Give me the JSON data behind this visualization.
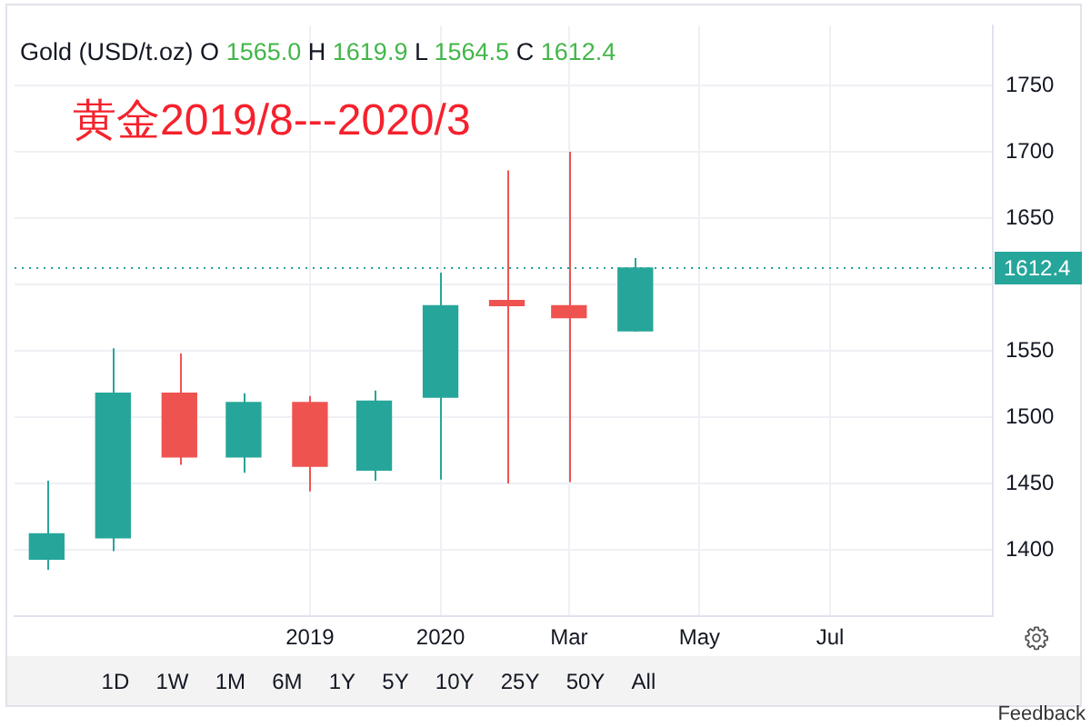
{
  "chart_data": {
    "type": "candlestick",
    "title": "Gold (USD/t.oz)",
    "subtitle": "黄金2019/8---2020/3",
    "annotations": [
      "O 1565.0 H 1619.9 L 1564.5 C 1612.4",
      "1D",
      "1W",
      "1M",
      "6M",
      "1Y",
      "5Y",
      "10Y",
      "25Y",
      "50Y",
      "All",
      "Feedback"
    ],
    "x": [
      "2019-07",
      "2019-08",
      "2019-09",
      "2019-10",
      "2019-11",
      "2019-12",
      "2020-01",
      "2020-02",
      "2020-03",
      "2020-04"
    ],
    "ohlc": [
      [
        1393,
        1452,
        1385,
        1412
      ],
      [
        1409,
        1552,
        1399,
        1518
      ],
      [
        1518,
        1548,
        1464,
        1470
      ],
      [
        1470,
        1518,
        1458,
        1511
      ],
      [
        1511,
        1516,
        1444,
        1463
      ],
      [
        1460,
        1520,
        1452,
        1512
      ],
      [
        1515,
        1609,
        1453,
        1584
      ],
      [
        1588,
        1686,
        1450,
        1584
      ],
      [
        1584,
        1700,
        1451,
        1575
      ],
      [
        1565.0,
        1619.9,
        1564.5,
        1612.4
      ]
    ],
    "colors": [
      "#26a69a",
      "#26a69a",
      "#ef5350",
      "#26a69a",
      "#ef5350",
      "#26a69a",
      "#26a69a",
      "#ef5350",
      "#ef5350",
      "#26a69a"
    ],
    "xlim": [
      "2019-06-16",
      "2020-09-15"
    ],
    "xticks": [
      {
        "value": "2019-11",
        "label": "2019"
      },
      {
        "value": "2020-01",
        "label": "2020"
      },
      {
        "value": "2020-03",
        "label": "Mar"
      },
      {
        "value": "2020-05",
        "label": "May"
      },
      {
        "value": "2020-07",
        "label": "Jul"
      }
    ],
    "ylim": [
      1350,
      1795
    ],
    "yticks": [
      1400,
      1450,
      1500,
      1550,
      {
        "value": 1600,
        "label": null
      },
      1650,
      1700,
      1750
    ],
    "ref_lines": [
      {
        "axis": "y",
        "value": 1612.4,
        "label": "1612.4",
        "color": "#26a69a",
        "line_style": "dotted"
      }
    ],
    "grid": true
  }
}
